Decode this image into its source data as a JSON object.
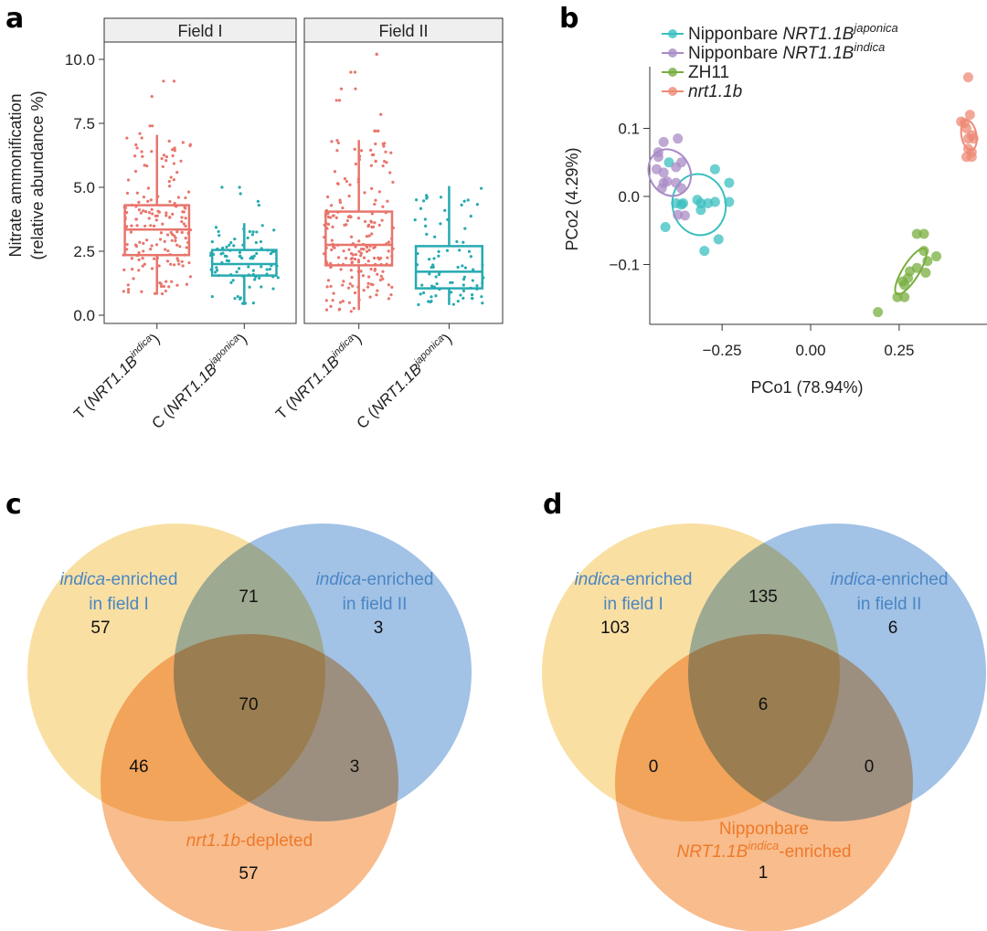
{
  "colors": {
    "treatment": "#E8756C",
    "control": "#26AAB0",
    "japonica": "#3BBFC0",
    "indica": "#A98BC6",
    "zh11": "#78AE3F",
    "nrt": "#EE8A76",
    "venn_yellow": "#F7D27E",
    "venn_blue": "#7EABDC",
    "venn_orange": "#F5A261",
    "venn_label_blue": "#4A86C4",
    "venn_label_orange": "#EE7A2A"
  },
  "chart_data": [
    {
      "panel": "a",
      "type": "box",
      "ylabel_line1": "Nitrate ammonification",
      "ylabel_line2": "(relative abundance %)",
      "ylim": [
        0,
        10.5
      ],
      "yticks": [
        "0.0",
        "2.5",
        "5.0",
        "7.5",
        "10.0"
      ],
      "ytick_values": [
        0,
        2.5,
        5,
        7.5,
        10
      ],
      "facets": [
        {
          "strip": "Field I",
          "groups": [
            {
              "label_prefix": "T (",
              "label_gene": "NRT1.1B",
              "label_sup": "indica",
              "label_suffix": ")",
              "color_key": "treatment",
              "whisker_low": 0.8,
              "q1": 2.35,
              "median": 3.35,
              "q3": 4.3,
              "whisker_high": 7.05,
              "outliers": [
                9.15,
                9.15,
                8.55,
                7.4,
                7.4,
                7.1
              ],
              "n_points": 170
            },
            {
              "label_prefix": "C (",
              "label_gene": "NRT1.1B",
              "label_sup": "japonica",
              "label_suffix": ")",
              "color_key": "control",
              "whisker_low": 0.4,
              "q1": 1.55,
              "median": 2.0,
              "q3": 2.55,
              "whisker_high": 3.6,
              "outliers": [
                5.0,
                5.0,
                4.75,
                4.45,
                4.3
              ],
              "n_points": 85
            }
          ]
        },
        {
          "strip": "Field II",
          "groups": [
            {
              "label_prefix": "T (",
              "label_gene": "NRT1.1B",
              "label_sup": "indica",
              "label_suffix": ")",
              "color_key": "treatment",
              "whisker_low": 0.2,
              "q1": 1.95,
              "median": 2.75,
              "q3": 4.05,
              "whisker_high": 6.85,
              "outliers": [
                10.2,
                10.2,
                9.5,
                9.5,
                8.85,
                8.85,
                8.4,
                8.4,
                7.85,
                7.2,
                7.2,
                7.2,
                0.15
              ],
              "n_points": 200
            },
            {
              "label_prefix": "C (",
              "label_gene": "NRT1.1B",
              "label_sup": "japonica",
              "label_suffix": ")",
              "color_key": "control",
              "whisker_low": 0.4,
              "q1": 1.05,
              "median": 1.7,
              "q3": 2.7,
              "whisker_high": 5.05,
              "outliers": [
                4.5
              ],
              "n_points": 80
            }
          ]
        }
      ]
    },
    {
      "panel": "b",
      "type": "scatter",
      "xlabel": "PCo1 (78.94%)",
      "ylabel": "PCo2 (4.29%)",
      "xlim": [
        -0.45,
        0.47
      ],
      "ylim": [
        -0.185,
        0.17
      ],
      "xticks": [
        "-0.25",
        "0.00",
        "0.25"
      ],
      "xtick_values": [
        -0.25,
        0,
        0.25
      ],
      "yticks": [
        "-0.1",
        "0.0",
        "0.1"
      ],
      "ytick_values": [
        -0.1,
        0,
        0.1
      ],
      "legend_position": "top-left",
      "series": [
        {
          "name_plain": "Nipponbare ",
          "name_italic": "NRT1.1B",
          "name_sup": "japonica",
          "color_key": "japonica",
          "points": [
            [
              -0.4,
              0.05
            ],
            [
              -0.27,
              0.04
            ],
            [
              -0.23,
              0.02
            ],
            [
              -0.38,
              -0.01
            ],
            [
              -0.36,
              -0.01
            ],
            [
              -0.32,
              -0.005
            ],
            [
              -0.31,
              -0.01
            ],
            [
              -0.29,
              -0.01
            ],
            [
              -0.27,
              -0.008
            ],
            [
              -0.23,
              -0.008
            ],
            [
              -0.31,
              -0.02
            ],
            [
              -0.41,
              -0.045
            ],
            [
              -0.26,
              -0.063
            ],
            [
              -0.3,
              -0.08
            ],
            [
              -0.365,
              -0.012
            ]
          ],
          "ellipse": {
            "cx": -0.315,
            "cy": -0.012,
            "rx": 0.075,
            "ry": 0.045,
            "angle": -10
          }
        },
        {
          "name_plain": "Nipponbare ",
          "name_italic": "NRT1.1B",
          "name_sup": "indica",
          "color_key": "indica",
          "points": [
            [
              -0.375,
              0.085
            ],
            [
              -0.415,
              0.08
            ],
            [
              -0.43,
              0.065
            ],
            [
              -0.43,
              0.058
            ],
            [
              -0.435,
              0.04
            ],
            [
              -0.38,
              0.043
            ],
            [
              -0.365,
              0.05
            ],
            [
              -0.405,
              0.022
            ],
            [
              -0.415,
              0.02
            ],
            [
              -0.42,
              0.012
            ],
            [
              -0.38,
              0.02
            ],
            [
              -0.365,
              0.012
            ],
            [
              -0.375,
              -0.027
            ],
            [
              -0.355,
              -0.028
            ],
            [
              -0.415,
              0.035
            ]
          ],
          "ellipse": {
            "cx": -0.398,
            "cy": 0.035,
            "rx": 0.068,
            "ry": 0.03,
            "angle": 62
          }
        },
        {
          "name_plain": "ZH11",
          "name_italic": "",
          "name_sup": "",
          "color_key": "zh11",
          "points": [
            [
              0.3,
              -0.055
            ],
            [
              0.32,
              -0.055
            ],
            [
              0.32,
              -0.08
            ],
            [
              0.355,
              -0.088
            ],
            [
              0.33,
              -0.095
            ],
            [
              0.3,
              -0.105
            ],
            [
              0.28,
              -0.11
            ],
            [
              0.275,
              -0.12
            ],
            [
              0.26,
              -0.125
            ],
            [
              0.265,
              -0.13
            ],
            [
              0.245,
              -0.148
            ],
            [
              0.265,
              -0.148
            ],
            [
              0.325,
              -0.112
            ],
            [
              0.19,
              -0.17
            ]
          ],
          "ellipse": {
            "cx": 0.283,
            "cy": -0.11,
            "rx": 0.075,
            "ry": 0.012,
            "angle": -58
          }
        },
        {
          "name_plain": "",
          "name_italic": "nrt1.1b",
          "name_sup": "",
          "color_key": "nrt",
          "points": [
            [
              0.445,
              0.175
            ],
            [
              0.425,
              0.11
            ],
            [
              0.45,
              0.12
            ],
            [
              0.44,
              0.1
            ],
            [
              0.455,
              0.09
            ],
            [
              0.445,
              0.085
            ],
            [
              0.46,
              0.085
            ],
            [
              0.445,
              0.07
            ],
            [
              0.455,
              0.065
            ],
            [
              0.44,
              0.058
            ],
            [
              0.455,
              0.058
            ],
            [
              0.435,
              0.108
            ]
          ],
          "ellipse": {
            "cx": 0.447,
            "cy": 0.09,
            "rx": 0.043,
            "ry": 0.011,
            "angle": 80
          }
        }
      ]
    },
    {
      "panel": "c",
      "type": "venn",
      "sets": [
        {
          "label_italic": "indica",
          "label_rest": "-enriched",
          "label_line2": "in field I",
          "color_key": "venn_yellow",
          "label_color_key": "venn_label_blue"
        },
        {
          "label_italic": "indica",
          "label_rest": "-enriched",
          "label_line2": "in field II",
          "color_key": "venn_blue",
          "label_color_key": "venn_label_blue"
        },
        {
          "label_italic": "nrt1.1b",
          "label_rest": "-depleted",
          "label_line2": "",
          "color_key": "venn_orange",
          "label_color_key": "venn_label_orange"
        }
      ],
      "regions": {
        "A": "57",
        "B": "3",
        "C": "57",
        "AB": "71",
        "AC": "46",
        "BC": "3",
        "ABC": "70"
      }
    },
    {
      "panel": "d",
      "type": "venn",
      "sets": [
        {
          "label_italic": "indica",
          "label_rest": "-enriched",
          "label_line2": "in field I",
          "color_key": "venn_yellow",
          "label_color_key": "venn_label_blue"
        },
        {
          "label_italic": "indica",
          "label_rest": "-enriched",
          "label_line2": "in field II",
          "color_key": "venn_blue",
          "label_color_key": "venn_label_blue"
        },
        {
          "label_line1": "Nipponbare",
          "label_italic": "NRT1.1B",
          "label_sup": "indica",
          "label_rest": "-enriched",
          "color_key": "venn_orange",
          "label_color_key": "venn_label_orange"
        }
      ],
      "regions": {
        "A": "103",
        "B": "6",
        "C": "1",
        "AB": "135",
        "AC": "0",
        "BC": "0",
        "ABC": "6"
      }
    }
  ],
  "panel_letters": [
    "a",
    "b",
    "c",
    "d"
  ]
}
